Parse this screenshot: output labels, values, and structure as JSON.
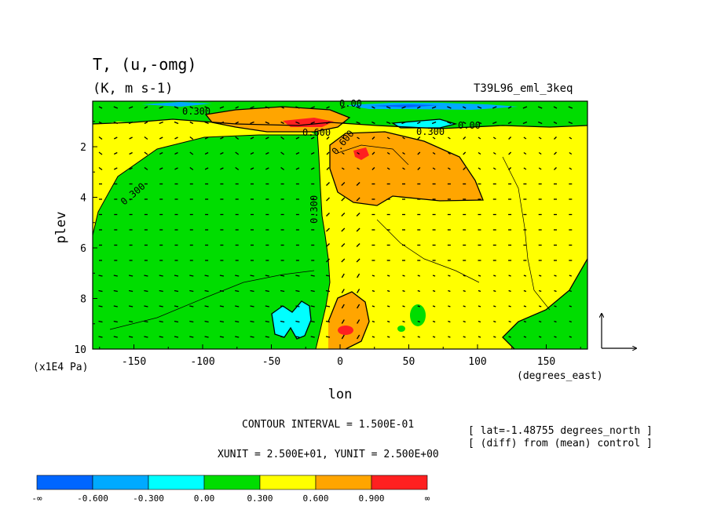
{
  "chart_data": {
    "type": "heatmap",
    "title": "T, (u,-omg)",
    "units": "(K, m s-1)",
    "experiment": "T39L96_eml_3keq",
    "xlabel": "lon",
    "xunit_label": "(degrees_east)",
    "ylabel": "plev",
    "yunit_label": "(x1E4 Pa)",
    "xlim": [
      -180,
      180
    ],
    "ylim": [
      10,
      0.2
    ],
    "x_ticks": [
      -150,
      -100,
      -50,
      0,
      50,
      100,
      150
    ],
    "x_tick_labels": [
      "-150",
      "-100",
      "-50",
      "0",
      "50",
      "100",
      "150"
    ],
    "y_ticks": [
      2,
      4,
      6,
      8,
      10
    ],
    "y_tick_labels": [
      "2",
      "4",
      "6",
      "8",
      "10"
    ],
    "contour_interval_text": "CONTOUR INTERVAL = 1.500E-01",
    "unit_text": "XUNIT = 2.500E+01, YUNIT = 2.500E+00",
    "info_lines": [
      "[ lat=-1.48755 degrees_north ]",
      "[ (diff) from (mean) control ]"
    ],
    "contour_labels": [
      "0.300",
      "0.300",
      "0.600",
      "0.600",
      "0.300",
      "0.00",
      "0.300",
      "0.00"
    ],
    "colorbar": {
      "labels": [
        "-∞",
        "-0.600",
        "-0.300",
        "0.00",
        "0.300",
        "0.600",
        "0.900",
        "∞"
      ],
      "colors": [
        "#0066ff",
        "#00aaff",
        "#00ffff",
        "#00dd00",
        "#ffff00",
        "#ffa500",
        "#ff2020"
      ]
    },
    "colors": {
      "neg_strong": "#0066ff",
      "neg_mid": "#00aaff",
      "neg_weak": "#00ffff",
      "pos_0": "#00dd00",
      "pos_300": "#ffff00",
      "pos_600": "#ffa500",
      "pos_900": "#ff2020"
    }
  }
}
